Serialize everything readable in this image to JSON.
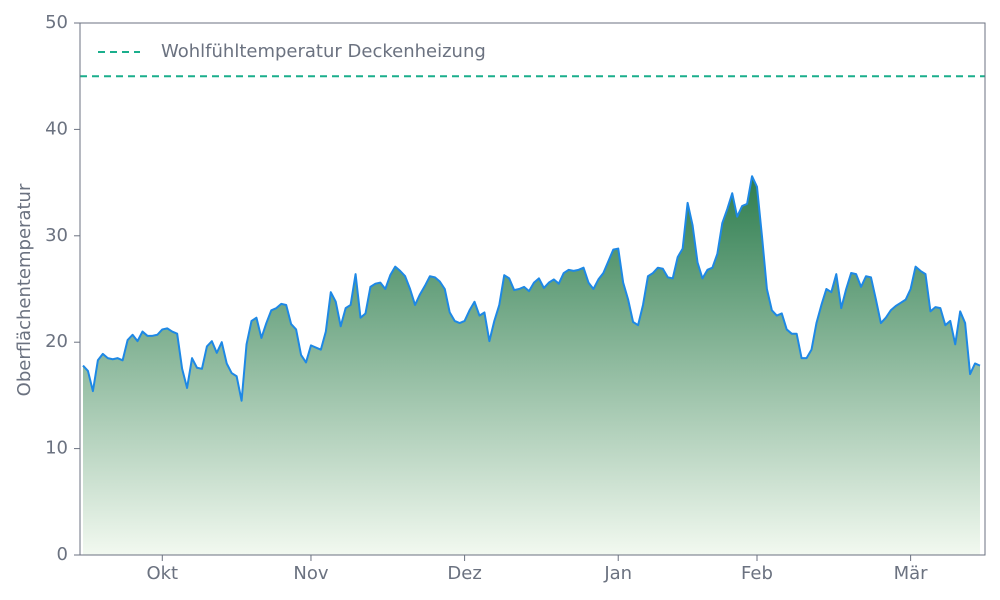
{
  "chart_data": {
    "type": "area",
    "y_label": "Oberflächentemperatur",
    "categories": [
      null,
      null,
      null,
      null,
      null,
      null,
      null,
      null,
      null,
      null,
      null,
      null,
      null,
      null,
      null,
      null,
      "Okt",
      null,
      null,
      null,
      null,
      null,
      null,
      null,
      null,
      null,
      null,
      null,
      null,
      null,
      null,
      null,
      null,
      null,
      null,
      null,
      null,
      null,
      null,
      null,
      null,
      null,
      null,
      null,
      null,
      null,
      "Nov",
      null,
      null,
      null,
      null,
      null,
      null,
      null,
      null,
      null,
      null,
      null,
      null,
      null,
      null,
      null,
      null,
      null,
      null,
      null,
      null,
      null,
      null,
      null,
      null,
      null,
      null,
      null,
      null,
      null,
      null,
      "Dez",
      null,
      null,
      null,
      null,
      null,
      null,
      null,
      null,
      null,
      null,
      null,
      null,
      null,
      null,
      null,
      null,
      null,
      null,
      null,
      null,
      null,
      null,
      null,
      null,
      null,
      null,
      null,
      null,
      null,
      null,
      "Jan",
      null,
      null,
      null,
      null,
      null,
      null,
      null,
      null,
      null,
      null,
      null,
      null,
      null,
      null,
      null,
      null,
      null,
      null,
      null,
      null,
      null,
      null,
      null,
      null,
      null,
      null,
      null,
      "Feb",
      null,
      null,
      null,
      null,
      null,
      null,
      null,
      null,
      null,
      null,
      null,
      null,
      null,
      null,
      null,
      null,
      null,
      null,
      null,
      null,
      null,
      null,
      null,
      null,
      null,
      null,
      null,
      null,
      null,
      null,
      "Mär",
      null,
      null,
      null,
      null,
      null,
      null,
      null,
      null,
      null,
      null,
      null,
      null,
      null,
      null
    ],
    "values": [
      17.8,
      17.3,
      15.4,
      18.3,
      18.9,
      18.5,
      18.4,
      18.5,
      18.3,
      20.2,
      20.7,
      20.1,
      21.0,
      20.6,
      20.6,
      20.7,
      21.2,
      21.3,
      21.0,
      20.8,
      17.5,
      15.7,
      18.5,
      17.6,
      17.5,
      19.6,
      20.1,
      19.0,
      20.0,
      18.0,
      17.1,
      16.8,
      14.5,
      19.8,
      22.0,
      22.3,
      20.4,
      21.8,
      23.0,
      23.2,
      23.6,
      23.5,
      21.7,
      21.2,
      18.8,
      18.1,
      19.7,
      19.5,
      19.3,
      21.0,
      24.7,
      23.8,
      21.5,
      23.2,
      23.5,
      26.4,
      22.3,
      22.7,
      25.2,
      25.5,
      25.6,
      25.0,
      26.3,
      27.1,
      26.7,
      26.2,
      25.0,
      23.5,
      24.5,
      25.3,
      26.2,
      26.1,
      25.7,
      25.0,
      22.8,
      22.0,
      21.8,
      22.0,
      23.0,
      23.8,
      22.5,
      22.8,
      20.1,
      22.0,
      23.5,
      26.3,
      26.0,
      24.9,
      25.0,
      25.2,
      24.8,
      25.6,
      26.0,
      25.1,
      25.6,
      25.9,
      25.5,
      26.5,
      26.8,
      26.7,
      26.8,
      27.0,
      25.6,
      25.0,
      25.9,
      26.5,
      27.6,
      28.7,
      28.8,
      25.6,
      24.0,
      21.9,
      21.6,
      23.5,
      26.2,
      26.5,
      27.0,
      26.9,
      26.1,
      26.0,
      28.0,
      28.8,
      33.1,
      31.0,
      27.5,
      26.0,
      26.8,
      27.0,
      28.3,
      31.2,
      32.5,
      34.0,
      31.8,
      32.8,
      33.0,
      35.6,
      34.6,
      30.0,
      25.0,
      23.0,
      22.5,
      22.7,
      21.2,
      20.8,
      20.8,
      18.5,
      18.5,
      19.3,
      21.8,
      23.5,
      25.0,
      24.7,
      26.4,
      23.2,
      25.0,
      26.5,
      26.4,
      25.2,
      26.2,
      26.1,
      24.0,
      21.8,
      22.3,
      23.0,
      23.4,
      23.7,
      24.0,
      25.0,
      27.1,
      26.7,
      26.4,
      22.9,
      23.3,
      23.2,
      21.6,
      22.0,
      19.8,
      22.9,
      21.8,
      17.0,
      18.0,
      17.8
    ],
    "color": "#1e88e5",
    "fill_colors": [
      "#2e7d4f",
      "#f2f9f0"
    ],
    "reference_lines": [
      {
        "name": "Wohlfühltemperatur Deckenheizung",
        "value": 45,
        "color": "#1aae8c",
        "dashed": true
      }
    ],
    "legend": "upper left",
    "ylim": [
      0,
      50
    ],
    "yticks": [
      0,
      10,
      20,
      30,
      40,
      50
    ],
    "grid": false
  }
}
